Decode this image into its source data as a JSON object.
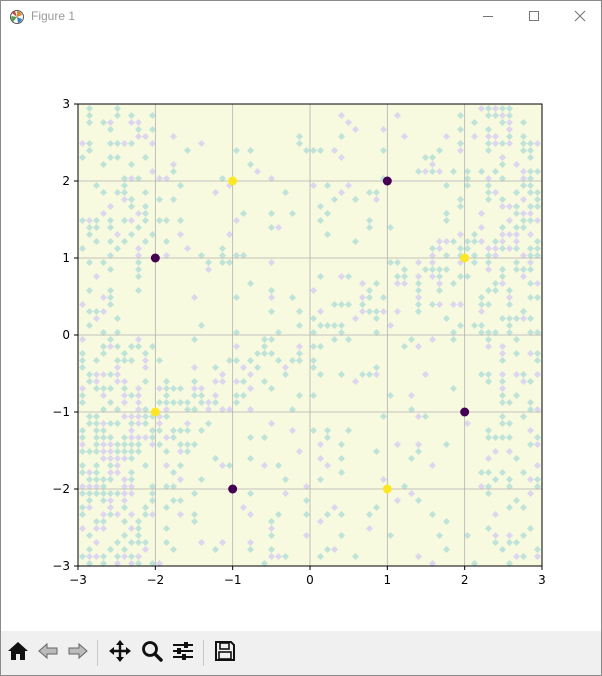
{
  "window": {
    "title": "Figure 1",
    "icons": {
      "app": "matplotlib-logo-icon",
      "minimize": "minimize-icon",
      "maximize": "maximize-icon",
      "close": "close-icon"
    }
  },
  "toolbar": {
    "buttons": [
      {
        "name": "home-button",
        "icon": "home-icon"
      },
      {
        "name": "back-button",
        "icon": "left-arrow-icon"
      },
      {
        "name": "forward-button",
        "icon": "right-arrow-icon"
      },
      {
        "name": "pan-button",
        "icon": "move-arrows-icon"
      },
      {
        "name": "zoom-button",
        "icon": "magnifier-icon"
      },
      {
        "name": "configure-subplots-button",
        "icon": "sliders-icon"
      },
      {
        "name": "save-button",
        "icon": "floppy-disk-icon"
      }
    ]
  },
  "chart_data": {
    "type": "scatter",
    "title": "",
    "xlabel": "",
    "ylabel": "",
    "xlim": [
      -3,
      3
    ],
    "ylim": [
      -3,
      3
    ],
    "x_ticks": [
      "−3",
      "−2",
      "−1",
      "0",
      "1",
      "2",
      "3"
    ],
    "y_ticks": [
      "−3",
      "−2",
      "−1",
      "0",
      "1",
      "2",
      "3"
    ],
    "grid": true,
    "background": "contour fill of decision regions (light yellow with scattered light-blue/lavender patches)",
    "colors": {
      "class_dark": "#440154",
      "class_yellow": "#fde725",
      "region_base": "#f8fae0",
      "region_teal": "#bfe3d8",
      "region_lavender": "#dcd6ee"
    },
    "series": [
      {
        "class": "dark",
        "points": [
          [
            -2,
            1
          ],
          [
            1,
            2
          ],
          [
            2,
            -1
          ],
          [
            -1,
            -2
          ]
        ]
      },
      {
        "class": "yellow",
        "points": [
          [
            -1,
            2
          ],
          [
            2,
            1
          ],
          [
            -2,
            -1
          ],
          [
            1,
            -2
          ]
        ]
      }
    ]
  }
}
